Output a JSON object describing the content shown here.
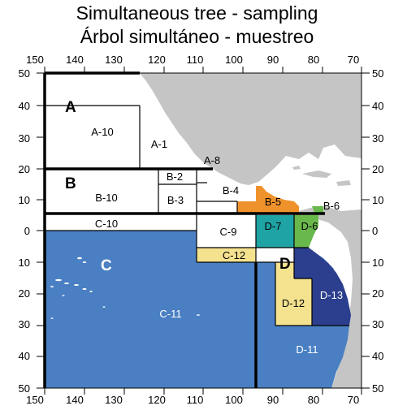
{
  "title": "Simultaneous tree - sampling",
  "subtitle": "Árbol simultáneo - muestreo",
  "colors": {
    "ocean_blue": "#4a80c3",
    "land_gray": "#c5c5c5",
    "orange": "#f0922c",
    "teal": "#1fa3a5",
    "green": "#69b84b",
    "navy": "#2c3e8e",
    "yellow": "#f4e28f",
    "island": "#ffffff"
  },
  "axes": {
    "lon_ticks": [
      "150",
      "140",
      "130",
      "120",
      "110",
      "100",
      "90",
      "80",
      "70"
    ],
    "lat_ticks": [
      "50",
      "40",
      "30",
      "20",
      "10",
      "0",
      "10",
      "20",
      "30",
      "40",
      "50"
    ]
  },
  "regions": {
    "A": "A",
    "B": "B",
    "C": "C",
    "D": "D"
  },
  "zones": {
    "A_10": "A-10",
    "A_1": "A-1",
    "A_8": "A-8",
    "B_10": "B-10",
    "B_2": "B-2",
    "B_3": "B-3",
    "B_4": "B-4",
    "B_5": "B-5",
    "B_6": "B-6",
    "C_10": "C-10",
    "C_9": "C-9",
    "C_12": "C-12",
    "C_11": "C-11",
    "D_7": "D-7",
    "D_6": "D-6",
    "D_12": "D-12",
    "D_13": "D-13",
    "D_11": "D-11"
  }
}
